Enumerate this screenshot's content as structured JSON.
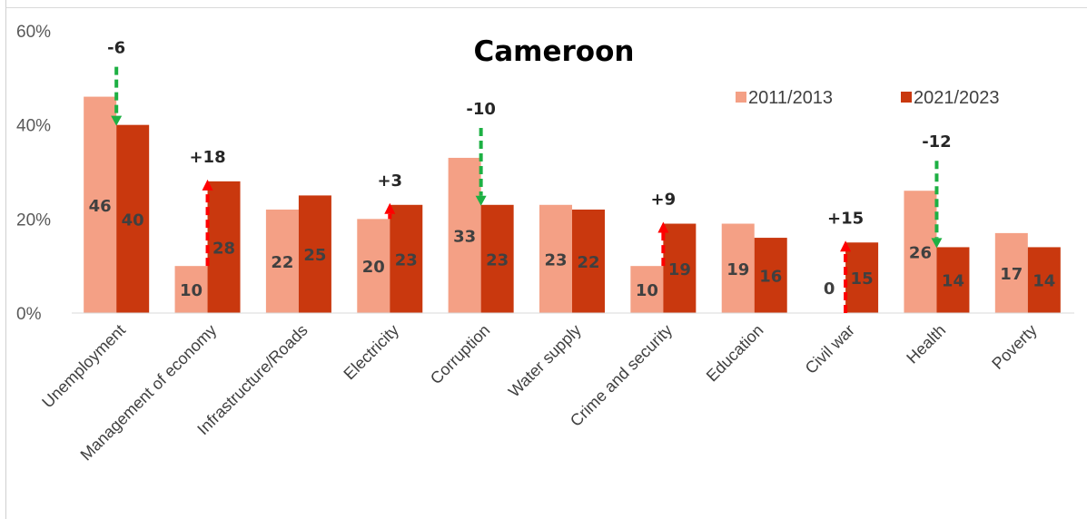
{
  "chart_data": {
    "type": "bar",
    "title": "Cameroon",
    "xlabel": "",
    "ylabel": "",
    "ylim": [
      0,
      60
    ],
    "yticks": [
      "0%",
      "20%",
      "40%",
      "60%"
    ],
    "legend_position": "top-right",
    "categories": [
      "Unemployment",
      "Management of economy",
      "Infrastructure/Roads",
      "Electricity",
      "Corruption",
      "Water supply",
      "Crime and security",
      "Education",
      "Civil war",
      "Health",
      "Poverty"
    ],
    "series": [
      {
        "name": "2011/2013",
        "color": "#f4a085",
        "values": [
          46,
          10,
          22,
          20,
          33,
          23,
          10,
          19,
          0,
          26,
          17
        ]
      },
      {
        "name": "2021/2023",
        "color": "#c9380e",
        "values": [
          40,
          28,
          25,
          23,
          23,
          22,
          19,
          16,
          15,
          14,
          14
        ]
      }
    ],
    "changes": [
      {
        "category_index": 0,
        "label": "-6",
        "direction": "down",
        "color": "#1db043"
      },
      {
        "category_index": 1,
        "label": "+18",
        "direction": "up",
        "color": "#ff0000"
      },
      {
        "category_index": 3,
        "label": "+3",
        "direction": "up",
        "color": "#ff0000"
      },
      {
        "category_index": 4,
        "label": "-10",
        "direction": "down",
        "color": "#1db043"
      },
      {
        "category_index": 6,
        "label": "+9",
        "direction": "up",
        "color": "#ff0000"
      },
      {
        "category_index": 8,
        "label": "+15",
        "direction": "up",
        "color": "#ff0000"
      },
      {
        "category_index": 9,
        "label": "-12",
        "direction": "down",
        "color": "#1db043"
      }
    ]
  }
}
